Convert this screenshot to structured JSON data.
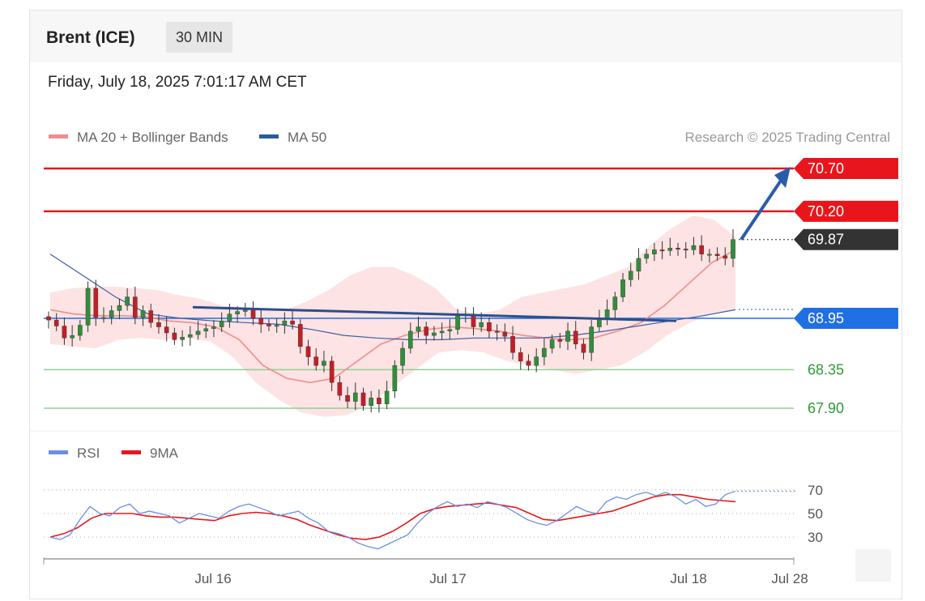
{
  "header": {
    "instrument": "Brent (ICE)",
    "timeframe": "30 MIN",
    "datetime": "Friday, July 18, 2025 7:01:17 AM CET"
  },
  "legend": {
    "ma20": "MA 20 + Bollinger Bands",
    "ma50": "MA 50",
    "copyright": "Research © 2025 Trading Central",
    "rsi": "RSI",
    "rsi_ma": "9MA"
  },
  "colors": {
    "resistance": "#e8161c",
    "support": "#8fcf92",
    "ma50": "#3a5fa6",
    "ma20": "#f08c8c",
    "bands": "#fde0e0",
    "pivot": "#1f6fe5",
    "last": "#333333",
    "up": "#2f8f3a",
    "down": "#c21f26",
    "arrow": "#2a5caa",
    "rsi": "#6c8fe0",
    "rsi_ma": "#e8161c",
    "support_text": "#2f9a36"
  },
  "chart_data": {
    "type": "candlestick",
    "x_ticks": [
      "Jul 16",
      "Jul 17",
      "Jul 18",
      "Jul 28"
    ],
    "price_levels": [
      {
        "label": "70.70",
        "value": 70.7,
        "kind": "resistance"
      },
      {
        "label": "70.20",
        "value": 70.2,
        "kind": "resistance"
      },
      {
        "label": "69.87",
        "value": 69.87,
        "kind": "last"
      },
      {
        "label": "68.95",
        "value": 68.95,
        "kind": "pivot"
      },
      {
        "label": "68.35",
        "value": 68.35,
        "kind": "support"
      },
      {
        "label": "67.90",
        "value": 67.9,
        "kind": "support"
      }
    ],
    "close": [
      68.93,
      68.86,
      68.72,
      68.75,
      68.87,
      69.3,
      68.96,
      68.96,
      69.04,
      69.1,
      69.2,
      68.96,
      69.04,
      68.9,
      68.85,
      68.78,
      68.7,
      68.73,
      68.76,
      68.8,
      68.83,
      68.85,
      68.92,
      69.0,
      69.03,
      69.05,
      68.95,
      68.88,
      68.86,
      68.87,
      68.92,
      68.88,
      68.62,
      68.5,
      68.4,
      68.45,
      68.2,
      68.05,
      67.98,
      68.08,
      67.93,
      68.02,
      67.95,
      68.1,
      68.4,
      68.6,
      68.8,
      68.85,
      68.75,
      68.78,
      68.8,
      68.82,
      69.0,
      68.98,
      68.85,
      68.9,
      68.8,
      68.79,
      68.74,
      68.55,
      68.45,
      68.4,
      68.5,
      68.6,
      68.7,
      68.68,
      68.8,
      68.65,
      68.55,
      68.85,
      68.95,
      69.05,
      69.2,
      69.4,
      69.5,
      69.65,
      69.7,
      69.75,
      69.74,
      69.77,
      69.76,
      69.75,
      69.8,
      69.7,
      69.7,
      69.68,
      69.65,
      69.87
    ],
    "bb_upper": [
      69.25,
      69.3,
      69.32,
      69.32,
      69.3,
      69.28,
      69.22,
      69.18,
      69.1,
      69.08,
      69.06,
      69.05,
      69.15,
      69.28,
      69.45,
      69.55,
      69.55,
      69.45,
      69.3,
      69.05,
      69.0,
      69.05,
      69.2,
      69.25,
      69.3,
      69.35,
      69.45,
      69.55,
      69.8,
      70.0,
      70.15,
      70.1,
      69.9
    ],
    "bb_lower": [
      68.65,
      68.62,
      68.6,
      68.7,
      68.72,
      68.7,
      68.72,
      68.68,
      68.5,
      68.2,
      68.0,
      67.85,
      67.8,
      67.82,
      67.95,
      68.15,
      68.35,
      68.55,
      68.58,
      68.55,
      68.45,
      68.4,
      68.35,
      68.3,
      68.35,
      68.4,
      68.55,
      68.75,
      68.9,
      69.0,
      69.05
    ],
    "ma20": [
      69.05,
      69.0,
      68.98,
      68.98,
      68.97,
      68.92,
      68.9,
      68.85,
      68.7,
      68.4,
      68.25,
      68.2,
      68.25,
      68.45,
      68.65,
      68.75,
      68.82,
      68.85,
      68.83,
      68.8,
      68.75,
      68.72,
      68.7,
      68.72,
      68.8,
      68.9,
      69.1,
      69.35,
      69.6,
      69.75
    ],
    "ma50": [
      69.7,
      69.45,
      69.2,
      69.0,
      68.95,
      68.92,
      68.9,
      68.88,
      68.82,
      68.75,
      68.72,
      68.7,
      68.7,
      68.72,
      68.72,
      68.72,
      68.75,
      68.8,
      68.86,
      68.92,
      68.98,
      69.05
    ],
    "trend_line": {
      "from": 69.08,
      "to": 68.92
    },
    "projection": {
      "from": 69.87,
      "to": 70.7
    },
    "rsi": {
      "ticks": [
        "70",
        "50",
        "30"
      ],
      "ylim": [
        15,
        85
      ],
      "rsi": [
        30,
        28,
        32,
        45,
        56,
        50,
        48,
        55,
        58,
        50,
        52,
        50,
        48,
        42,
        46,
        50,
        48,
        46,
        52,
        56,
        58,
        55,
        52,
        48,
        50,
        52,
        46,
        42,
        35,
        33,
        30,
        25,
        22,
        20,
        24,
        28,
        32,
        42,
        50,
        56,
        60,
        56,
        58,
        55,
        60,
        58,
        55,
        50,
        45,
        42,
        40,
        44,
        50,
        56,
        52,
        50,
        60,
        64,
        62,
        66,
        68,
        65,
        68,
        64,
        58,
        62,
        56,
        58,
        66,
        69
      ],
      "ma9": [
        30,
        33,
        38,
        46,
        50,
        50,
        50,
        48,
        47,
        47,
        46,
        45,
        44,
        48,
        50,
        51,
        50,
        48,
        45,
        40,
        36,
        32,
        29,
        28,
        30,
        35,
        42,
        50,
        54,
        56,
        57,
        58,
        59,
        57,
        55,
        50,
        45,
        44,
        46,
        48,
        50,
        52,
        56,
        60,
        64,
        66,
        66,
        64,
        62,
        61,
        60
      ]
    }
  }
}
